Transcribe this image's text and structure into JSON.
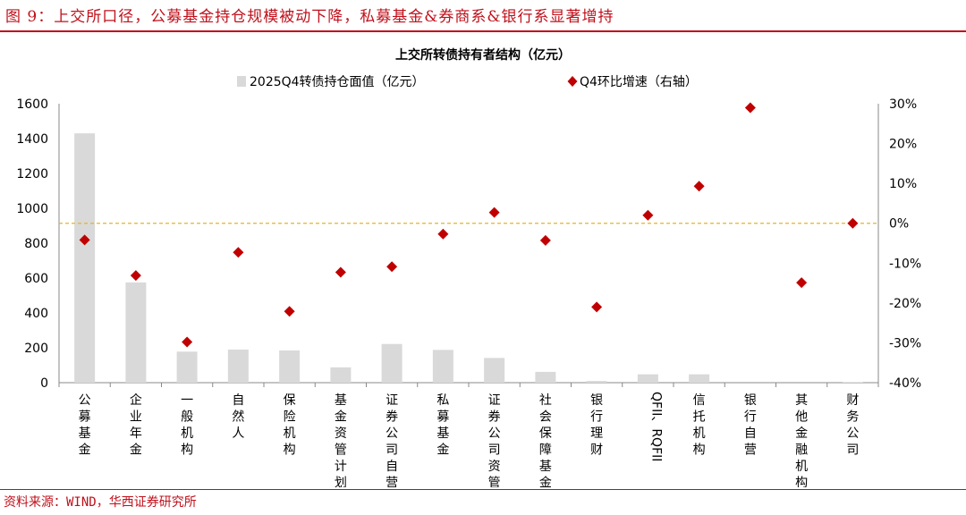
{
  "figure": {
    "title": "图 9：上交所口径，公募基金持仓规模被动下降，私募基金&券商系&银行系显著增持",
    "source": "资料来源：WIND，华西证券研究所"
  },
  "colors": {
    "accent": "#c0101b",
    "bar": "#d9d9d9",
    "marker": "#c00000",
    "zero_line": "#e6b422"
  },
  "chart_data": {
    "type": "bar",
    "title": "上交所转债持有者结构（亿元）",
    "categories": [
      "公募基金",
      "企业年金",
      "一般机构",
      "自然人",
      "保险机构",
      "基金资管计划",
      "证券公司自营",
      "私募基金",
      "证券公司资管",
      "社会保障基金",
      "银行理财",
      "QFII、RQFII",
      "信托机构",
      "银行自营",
      "其他金融机构",
      "财务公司"
    ],
    "category_label_lines": [
      [
        "公",
        "募",
        "基",
        "金"
      ],
      [
        "企",
        "业",
        "年",
        "金"
      ],
      [
        "一",
        "般",
        "机",
        "构"
      ],
      [
        "自",
        "然",
        "人"
      ],
      [
        "保",
        "险",
        "机",
        "构"
      ],
      [
        "基",
        "金",
        "资",
        "管",
        "计",
        "划"
      ],
      [
        "证",
        "券",
        "公",
        "司",
        "自",
        "营"
      ],
      [
        "私",
        "募",
        "基",
        "金"
      ],
      [
        "证",
        "券",
        "公",
        "司",
        "资",
        "管"
      ],
      [
        "社",
        "会",
        "保",
        "障",
        "基",
        "金"
      ],
      [
        "银",
        "行",
        "理",
        "财"
      ],
      [
        "QFII、RQFII"
      ],
      [
        "信",
        "托",
        "机",
        "构"
      ],
      [
        "银",
        "行",
        "自",
        "营"
      ],
      [
        "其",
        "他",
        "金",
        "融",
        "机",
        "构"
      ],
      [
        "财",
        "务",
        "公",
        "司"
      ]
    ],
    "series": [
      {
        "name": "2025Q4转债持仓面值（亿元）",
        "type": "bar",
        "axis": "left",
        "values": [
          1430,
          575,
          178,
          190,
          185,
          88,
          222,
          188,
          142,
          62,
          10,
          48,
          48,
          0,
          0,
          2
        ]
      },
      {
        "name": "Q4环比增速（右轴）",
        "type": "scatter",
        "axis": "right",
        "values": [
          -4.2,
          -13.1,
          -29.8,
          -7.3,
          -22.1,
          -12.3,
          -10.9,
          -2.7,
          2.7,
          -4.3,
          -21.0,
          2.0,
          9.3,
          29.0,
          -14.9,
          0.0
        ]
      }
    ],
    "y_left": {
      "lim": [
        0,
        1600
      ],
      "ticks": [
        0,
        200,
        400,
        600,
        800,
        1000,
        1200,
        1400,
        1600
      ]
    },
    "y_right": {
      "lim": [
        -40,
        30
      ],
      "ticks": [
        -40,
        -30,
        -20,
        -10,
        0,
        10,
        20,
        30
      ],
      "tick_labels": [
        "-40%",
        "-30%",
        "-20%",
        "-10%",
        "0%",
        "10%",
        "20%",
        "30%"
      ]
    },
    "zero_reference_line": {
      "axis": "right",
      "value": 0,
      "style": "dashed"
    },
    "legend": {
      "position": "top-center"
    },
    "grid": false
  }
}
